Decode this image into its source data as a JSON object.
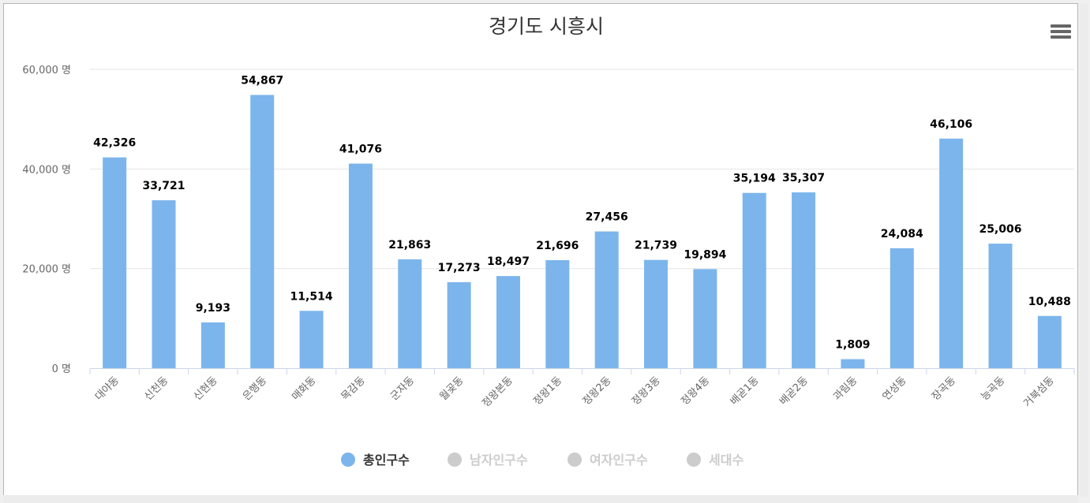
{
  "chart_data": {
    "type": "bar",
    "title": "경기도 시흥시",
    "categories": [
      "대야동",
      "신천동",
      "신현동",
      "은행동",
      "매화동",
      "목감동",
      "군자동",
      "월곶동",
      "정왕본동",
      "정왕1동",
      "정왕2동",
      "정왕3동",
      "정왕4동",
      "배곧1동",
      "배곧2동",
      "과림동",
      "연성동",
      "장곡동",
      "능곡동",
      "거북섬동"
    ],
    "series": [
      {
        "name": "총인구수",
        "visible": true,
        "color": "#7cb5ec",
        "values": [
          42326,
          33721,
          9193,
          54867,
          11514,
          41076,
          21863,
          17273,
          18497,
          21696,
          27456,
          21739,
          19894,
          35194,
          35307,
          1809,
          24084,
          46106,
          25006,
          10488
        ],
        "labels": [
          "42,326",
          "33,721",
          "9,193",
          "54,867",
          "11,514",
          "41,076",
          "21,863",
          "17,273",
          "18,497",
          "21,696",
          "27,456",
          "21,739",
          "19,894",
          "35,194",
          "35,307",
          "1,809",
          "24,084",
          "46,106",
          "25,006",
          "10,488"
        ]
      },
      {
        "name": "남자인구수",
        "visible": false,
        "color": "#cccccc"
      },
      {
        "name": "여자인구수",
        "visible": false,
        "color": "#cccccc"
      },
      {
        "name": "세대수",
        "visible": false,
        "color": "#cccccc"
      }
    ],
    "yaxis": {
      "min": 0,
      "max": 60000,
      "ticks": [
        0,
        20000,
        40000,
        60000
      ],
      "tick_labels": [
        "0 명",
        "20,000 명",
        "40,000 명",
        "60,000 명"
      ]
    },
    "xlabel": "",
    "ylabel": "",
    "grid": true,
    "legend_position": "bottom-center"
  },
  "ui": {
    "menu_icon": "hamburger-menu-icon",
    "legend_inactive_color": "#cccccc",
    "legend_active_text_color": "#333333",
    "axis_color": "#ccd6eb",
    "grid_color": "#e6e6e6"
  }
}
